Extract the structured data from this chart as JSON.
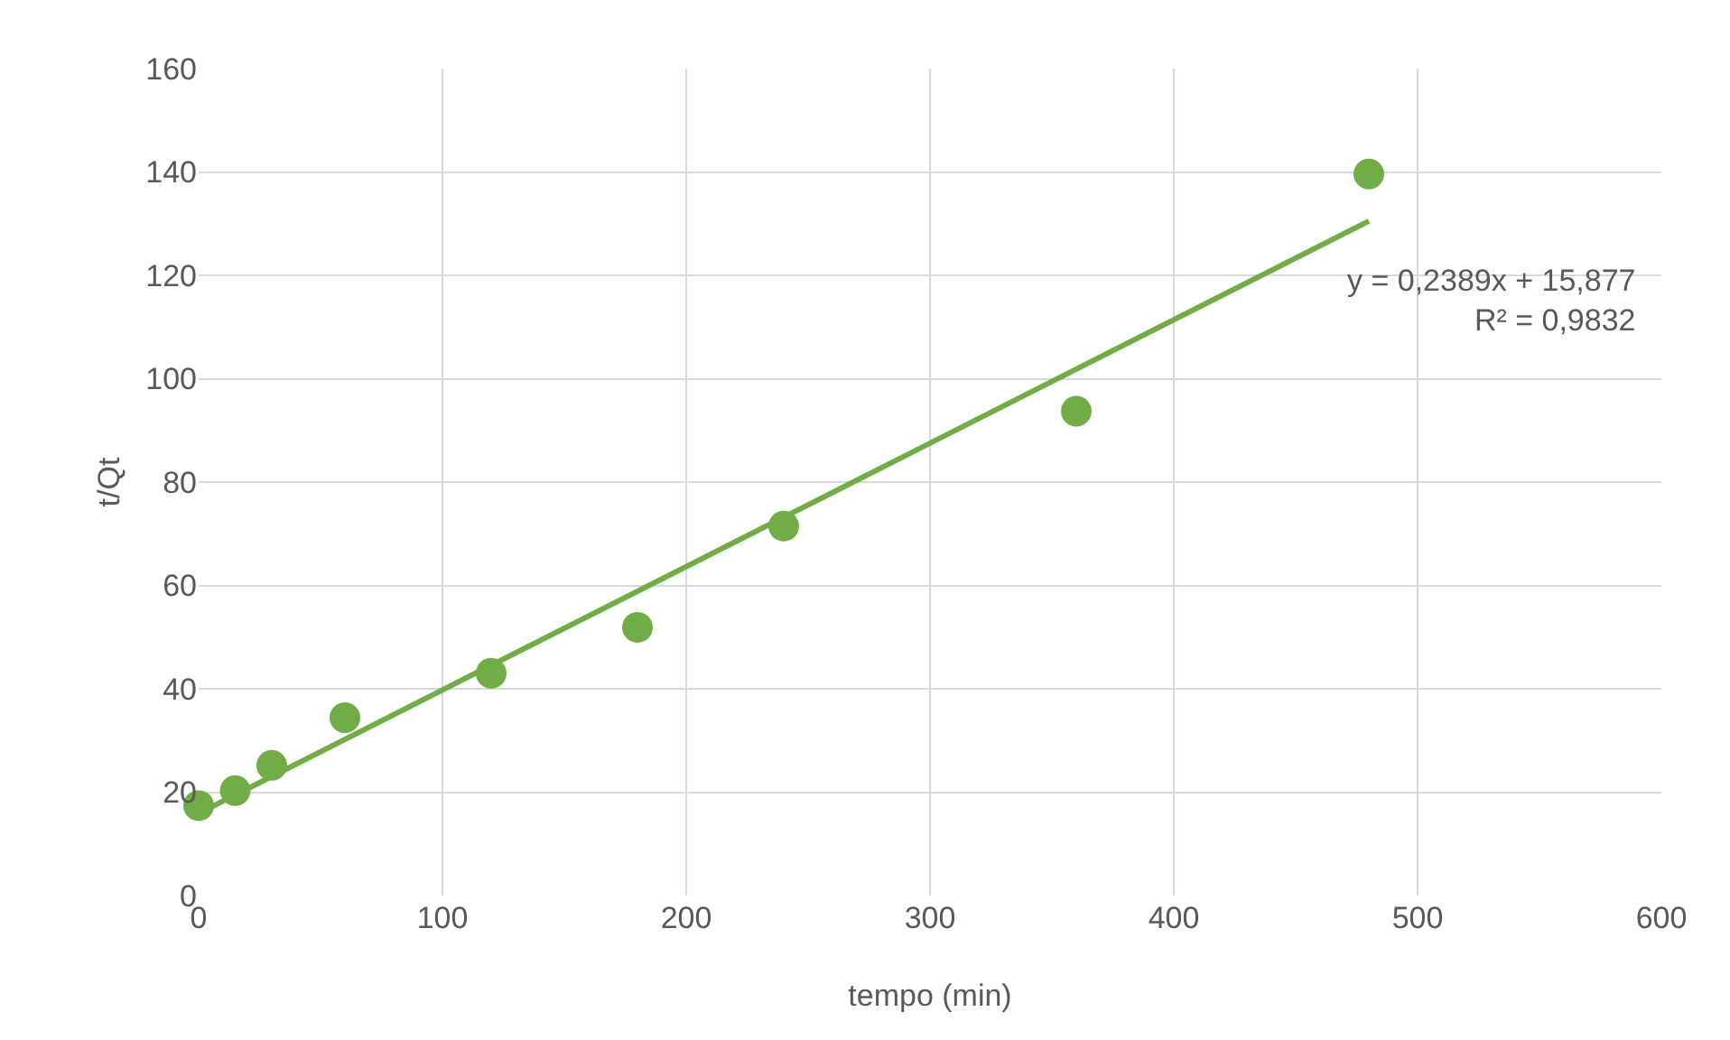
{
  "chart_data": {
    "type": "scatter",
    "xlabel": "tempo (min)",
    "ylabel": "t/Qt",
    "x": [
      0,
      15,
      30,
      60,
      120,
      180,
      240,
      360,
      480
    ],
    "series": [
      {
        "color": "#70ad47",
        "marker": "circle",
        "values": [
          17.4,
          20.3,
          25.2,
          34.4,
          43,
          51.9,
          71.5,
          93.7,
          139.6
        ]
      },
      {
        "type": "line",
        "color": "#70ad47",
        "marker": "none",
        "x": [
          0,
          480
        ],
        "values": [
          15.9,
          130.5
        ]
      }
    ],
    "xlim": [
      0,
      600
    ],
    "xticks": [
      0,
      100,
      200,
      300,
      400,
      500,
      600
    ],
    "ylim": [
      0,
      160
    ],
    "yticks": [
      0,
      20,
      40,
      60,
      80,
      100,
      120,
      140,
      160
    ],
    "grid": true,
    "annotations": [
      "y = 0,2389x + 15,877\nR² = 0,9832"
    ]
  }
}
